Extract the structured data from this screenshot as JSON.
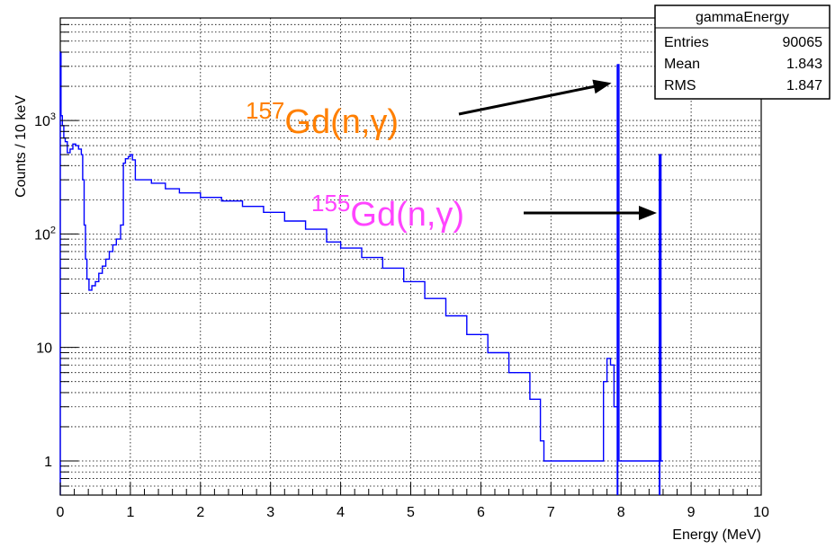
{
  "chart_data": {
    "type": "line",
    "title": "",
    "xlabel": "Energy (MeV)",
    "ylabel": "Counts / 10 keV",
    "x_range": [
      0,
      10
    ],
    "y_range": [
      0.5,
      8000
    ],
    "y_scale": "log",
    "grid": true,
    "x_ticks": [
      "0",
      "1",
      "2",
      "3",
      "4",
      "5",
      "6",
      "7",
      "8",
      "9",
      "10"
    ],
    "y_ticks": [
      {
        "value": 1,
        "label": "1"
      },
      {
        "value": 10,
        "label": "10"
      },
      {
        "value": 100,
        "label": "10",
        "exp": "2"
      },
      {
        "value": 1000,
        "label": "10",
        "exp": "3"
      }
    ],
    "series": [
      {
        "color": "#0000ff",
        "points": [
          [
            0.0,
            4000
          ],
          [
            0.01,
            1100
          ],
          [
            0.03,
            900
          ],
          [
            0.05,
            700
          ],
          [
            0.07,
            650
          ],
          [
            0.1,
            520
          ],
          [
            0.14,
            560
          ],
          [
            0.18,
            620
          ],
          [
            0.22,
            600
          ],
          [
            0.26,
            560
          ],
          [
            0.3,
            500
          ],
          [
            0.32,
            300
          ],
          [
            0.34,
            120
          ],
          [
            0.36,
            60
          ],
          [
            0.38,
            40
          ],
          [
            0.41,
            32
          ],
          [
            0.45,
            35
          ],
          [
            0.5,
            38
          ],
          [
            0.55,
            45
          ],
          [
            0.6,
            52
          ],
          [
            0.65,
            60
          ],
          [
            0.7,
            70
          ],
          [
            0.75,
            80
          ],
          [
            0.8,
            90
          ],
          [
            0.86,
            120
          ],
          [
            0.9,
            420
          ],
          [
            0.93,
            460
          ],
          [
            0.97,
            480
          ],
          [
            1.0,
            500
          ],
          [
            1.03,
            450
          ],
          [
            1.07,
            300
          ],
          [
            1.15,
            300
          ],
          [
            1.3,
            280
          ],
          [
            1.5,
            250
          ],
          [
            1.7,
            230
          ],
          [
            2.0,
            210
          ],
          [
            2.3,
            195
          ],
          [
            2.6,
            175
          ],
          [
            2.9,
            155
          ],
          [
            3.2,
            130
          ],
          [
            3.5,
            110
          ],
          [
            3.8,
            85
          ],
          [
            4.0,
            75
          ],
          [
            4.3,
            62
          ],
          [
            4.6,
            50
          ],
          [
            4.9,
            38
          ],
          [
            5.2,
            27
          ],
          [
            5.5,
            19
          ],
          [
            5.8,
            13
          ],
          [
            6.1,
            9
          ],
          [
            6.4,
            6
          ],
          [
            6.7,
            3.5
          ],
          [
            6.85,
            1.5
          ],
          [
            6.9,
            1
          ],
          [
            7.1,
            1
          ],
          [
            7.3,
            1
          ],
          [
            7.5,
            1
          ],
          [
            7.7,
            1
          ],
          [
            7.75,
            5
          ],
          [
            7.8,
            8
          ],
          [
            7.85,
            7
          ],
          [
            7.9,
            3
          ],
          [
            7.95,
            3100
          ],
          [
            7.97,
            1
          ],
          [
            8.3,
            1
          ],
          [
            8.45,
            1
          ],
          [
            8.55,
            500
          ],
          [
            8.57,
            1
          ],
          [
            8.6,
            1
          ]
        ]
      }
    ]
  },
  "stats_box": {
    "title": "gammaEnergy",
    "rows": [
      {
        "label": "Entries",
        "value": "90065"
      },
      {
        "label": "Mean",
        "value": "1.843"
      },
      {
        "label": "RMS",
        "value": "1.847"
      }
    ]
  },
  "annotations": [
    {
      "sup": "157",
      "text": "Gd(n,γ)",
      "color": "#ff7f00",
      "target_x": 7.93,
      "target_y": 3000
    },
    {
      "sup": "155",
      "text": "Gd(n,γ)",
      "color": "#ff44ff",
      "target_x": 8.48,
      "target_y": 150
    }
  ]
}
